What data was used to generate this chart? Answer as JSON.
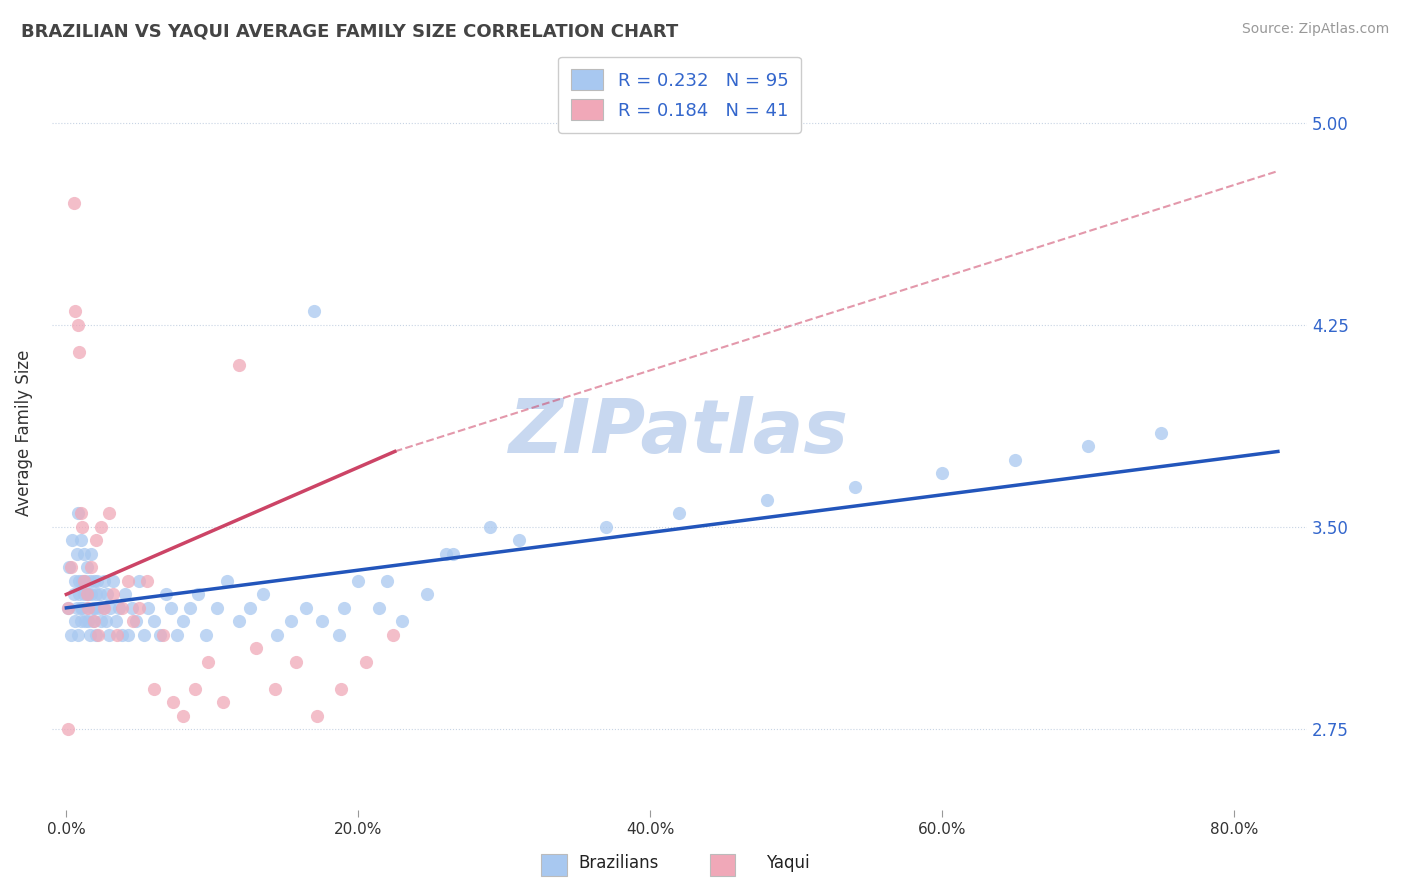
{
  "title": "BRAZILIAN VS YAQUI AVERAGE FAMILY SIZE CORRELATION CHART",
  "source": "Source: ZipAtlas.com",
  "ylabel": "Average Family Size",
  "xlabel_ticks": [
    "0.0%",
    "20.0%",
    "40.0%",
    "60.0%",
    "80.0%"
  ],
  "xlabel_vals": [
    0.0,
    0.2,
    0.4,
    0.6,
    0.8
  ],
  "ytick_labels": [
    "2.75",
    "3.50",
    "4.25",
    "5.00"
  ],
  "ytick_vals": [
    2.75,
    3.5,
    4.25,
    5.0
  ],
  "xlim": [
    -0.01,
    0.85
  ],
  "ylim": [
    2.45,
    5.25
  ],
  "R_brazilian": 0.232,
  "N_brazilian": 95,
  "R_yaqui": 0.184,
  "N_yaqui": 41,
  "color_brazilian": "#a8c8f0",
  "color_yaqui": "#f0a8b8",
  "trendline_color_brazilian": "#2255bb",
  "trendline_color_yaqui": "#cc4466",
  "watermark": "ZIPatlas",
  "watermark_color": "#c8d8f0",
  "legend_color": "#3366cc",
  "brazilian_x": [
    0.001,
    0.002,
    0.003,
    0.004,
    0.005,
    0.006,
    0.006,
    0.007,
    0.007,
    0.008,
    0.008,
    0.009,
    0.009,
    0.01,
    0.01,
    0.01,
    0.011,
    0.011,
    0.012,
    0.012,
    0.013,
    0.013,
    0.014,
    0.014,
    0.015,
    0.015,
    0.016,
    0.016,
    0.017,
    0.017,
    0.018,
    0.018,
    0.019,
    0.019,
    0.02,
    0.02,
    0.021,
    0.022,
    0.023,
    0.024,
    0.025,
    0.026,
    0.027,
    0.028,
    0.029,
    0.03,
    0.032,
    0.034,
    0.036,
    0.038,
    0.04,
    0.042,
    0.045,
    0.048,
    0.05,
    0.053,
    0.056,
    0.06,
    0.064,
    0.068,
    0.072,
    0.076,
    0.08,
    0.085,
    0.09,
    0.096,
    0.103,
    0.11,
    0.118,
    0.126,
    0.135,
    0.144,
    0.154,
    0.164,
    0.175,
    0.187,
    0.2,
    0.214,
    0.23,
    0.247,
    0.265,
    0.31,
    0.37,
    0.42,
    0.48,
    0.54,
    0.6,
    0.65,
    0.7,
    0.75,
    0.17,
    0.19,
    0.22,
    0.26,
    0.29
  ],
  "brazilian_y": [
    3.2,
    3.35,
    3.1,
    3.45,
    3.25,
    3.3,
    3.15,
    3.4,
    3.2,
    3.55,
    3.1,
    3.3,
    3.25,
    3.2,
    3.45,
    3.15,
    3.3,
    3.2,
    3.25,
    3.4,
    3.15,
    3.3,
    3.2,
    3.35,
    3.25,
    3.15,
    3.3,
    3.1,
    3.25,
    3.4,
    3.2,
    3.15,
    3.3,
    3.2,
    3.25,
    3.1,
    3.3,
    3.2,
    3.25,
    3.15,
    3.2,
    3.3,
    3.15,
    3.25,
    3.1,
    3.2,
    3.3,
    3.15,
    3.2,
    3.1,
    3.25,
    3.1,
    3.2,
    3.15,
    3.3,
    3.1,
    3.2,
    3.15,
    3.1,
    3.25,
    3.2,
    3.1,
    3.15,
    3.2,
    3.25,
    3.1,
    3.2,
    3.3,
    3.15,
    3.2,
    3.25,
    3.1,
    3.15,
    3.2,
    3.15,
    3.1,
    3.3,
    3.2,
    3.15,
    3.25,
    3.4,
    3.45,
    3.5,
    3.55,
    3.6,
    3.65,
    3.7,
    3.75,
    3.8,
    3.85,
    4.3,
    3.2,
    3.3,
    3.4,
    3.5
  ],
  "yaqui_x": [
    0.001,
    0.003,
    0.005,
    0.006,
    0.008,
    0.009,
    0.01,
    0.011,
    0.012,
    0.014,
    0.015,
    0.017,
    0.019,
    0.02,
    0.022,
    0.024,
    0.026,
    0.029,
    0.032,
    0.035,
    0.038,
    0.042,
    0.046,
    0.05,
    0.055,
    0.06,
    0.066,
    0.073,
    0.08,
    0.088,
    0.097,
    0.107,
    0.118,
    0.13,
    0.143,
    0.157,
    0.172,
    0.188,
    0.205,
    0.224,
    0.001
  ],
  "yaqui_y": [
    3.2,
    3.35,
    4.7,
    4.3,
    4.25,
    4.15,
    3.55,
    3.5,
    3.3,
    3.25,
    3.2,
    3.35,
    3.15,
    3.45,
    3.1,
    3.5,
    3.2,
    3.55,
    3.25,
    3.1,
    3.2,
    3.3,
    3.15,
    3.2,
    3.3,
    2.9,
    3.1,
    2.85,
    2.8,
    2.9,
    3.0,
    2.85,
    4.1,
    3.05,
    2.9,
    3.0,
    2.8,
    2.9,
    3.0,
    3.1,
    2.75
  ],
  "trendline_b_x0": 0.0,
  "trendline_b_x1": 0.83,
  "trendline_b_y0": 3.2,
  "trendline_b_y1": 3.78,
  "trendline_y_x0": 0.0,
  "trendline_y_x1": 0.225,
  "trendline_y_y0": 3.25,
  "trendline_y_y1": 3.78,
  "trendline_y_dash_x0": 0.225,
  "trendline_y_dash_x1": 0.83,
  "trendline_y_dash_y0": 3.78,
  "trendline_y_dash_y1": 4.82
}
